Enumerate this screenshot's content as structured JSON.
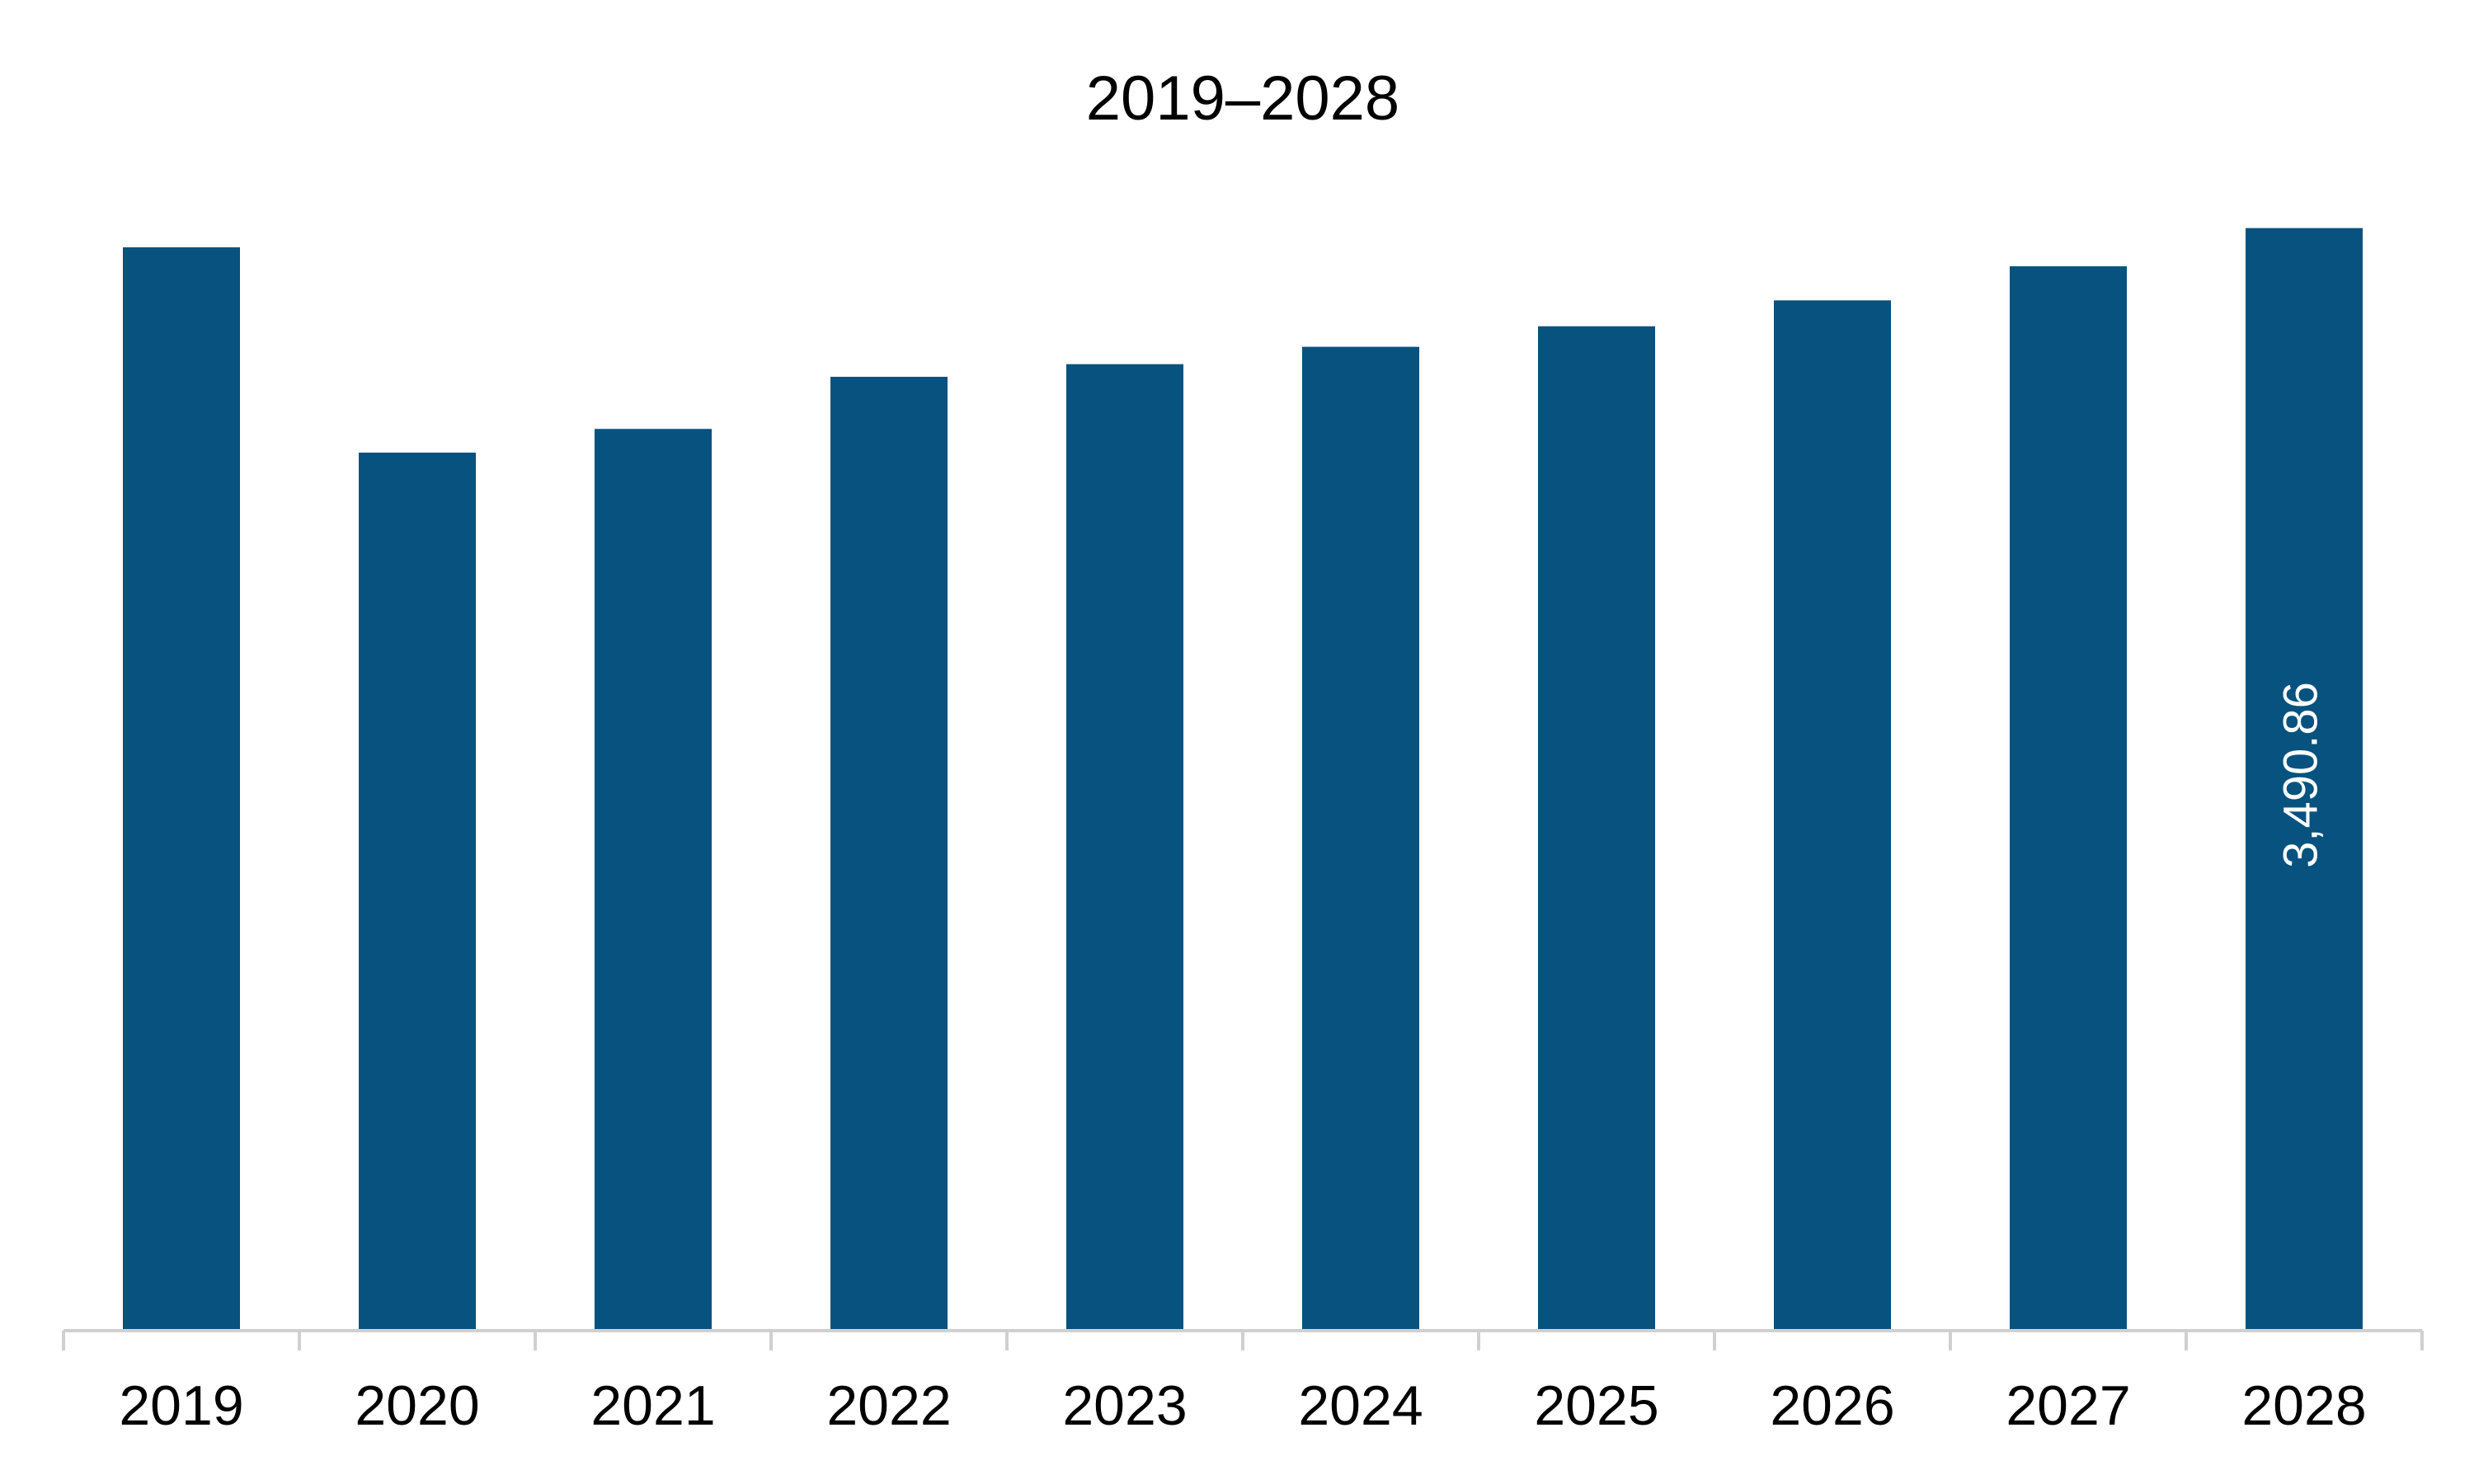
{
  "chart_data": {
    "type": "bar",
    "title": "2019–2028",
    "categories": [
      "2019",
      "2020",
      "2021",
      "2022",
      "2023",
      "2024",
      "2025",
      "2026",
      "2027",
      "2028"
    ],
    "values": [
      3430,
      2780,
      2855,
      3020,
      3060,
      3115,
      3180,
      3262,
      3370,
      3490.86
    ],
    "data_labels": [
      "",
      "",
      "",
      "",
      "",
      "",
      "",
      "",
      "",
      "3,490.86"
    ],
    "ylim": [
      0,
      3550
    ],
    "xlabel": "",
    "ylabel": "",
    "grid": false,
    "legend": "none",
    "bar_color": "#07527f",
    "axis_color": "#d0d0d0"
  }
}
